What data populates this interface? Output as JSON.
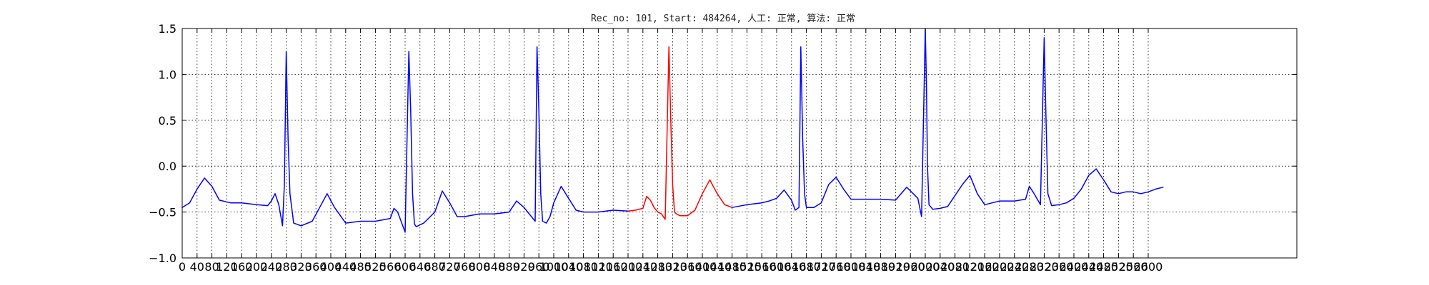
{
  "chart_data": {
    "type": "line",
    "title": "Rec_no: 101, Start: 484264, 人工: 正常, 算法: 正常",
    "xlabel": "",
    "ylabel": "",
    "xlim": [
      0,
      3000
    ],
    "ylim": [
      -1.0,
      1.5
    ],
    "grid": true,
    "y_ticks": [
      "−1.0",
      "−0.5",
      "0.0",
      "0.5",
      "1.0",
      "1.5"
    ],
    "x_ticks": [
      "0",
      "40",
      "80",
      "120",
      "160",
      "200",
      "240",
      "280",
      "320",
      "360",
      "400",
      "440",
      "480",
      "520",
      "560",
      "600",
      "640",
      "680",
      "720",
      "760",
      "800",
      "840",
      "880",
      "920",
      "960",
      "1000",
      "1040",
      "1080",
      "1120",
      "1160",
      "1200",
      "1240",
      "1280",
      "1320",
      "1360",
      "1400",
      "1440",
      "1480",
      "1520",
      "1560",
      "1600",
      "1640",
      "1680",
      "1720",
      "1760",
      "1800",
      "1840",
      "1880",
      "1920",
      "1960",
      "2000",
      "2040",
      "2080",
      "2120",
      "2160",
      "2200",
      "2240",
      "2280",
      "2320",
      "2360",
      "2400",
      "2440",
      "2480",
      "2520",
      "2560",
      "2600"
    ],
    "series": [
      {
        "color": "#0000ff",
        "x": [
          0,
          20,
          40,
          60,
          80,
          100,
          130,
          160,
          200,
          230,
          240,
          250,
          260,
          270,
          275,
          280,
          285,
          290,
          300,
          320,
          350,
          370,
          390,
          410,
          440,
          480,
          520,
          560,
          570,
          580,
          600,
          610,
          615,
          620,
          625,
          630,
          640,
          650,
          680,
          700,
          720,
          740,
          760,
          800,
          840,
          880,
          900,
          920,
          950,
          955,
          960,
          965,
          970,
          980,
          990,
          1000,
          1020,
          1040,
          1060,
          1080,
          1120,
          1160,
          1200
        ],
        "y": [
          -0.45,
          -0.4,
          -0.25,
          -0.13,
          -0.22,
          -0.37,
          -0.4,
          -0.4,
          -0.42,
          -0.43,
          -0.38,
          -0.3,
          -0.42,
          -0.65,
          -0.2,
          1.25,
          0.3,
          -0.3,
          -0.62,
          -0.65,
          -0.6,
          -0.45,
          -0.3,
          -0.45,
          -0.62,
          -0.6,
          -0.6,
          -0.57,
          -0.46,
          -0.5,
          -0.72,
          1.25,
          0.6,
          -0.3,
          -0.63,
          -0.66,
          -0.64,
          -0.62,
          -0.5,
          -0.27,
          -0.4,
          -0.55,
          -0.55,
          -0.52,
          -0.52,
          -0.5,
          -0.38,
          -0.45,
          -0.6,
          1.3,
          0.6,
          -0.3,
          -0.6,
          -0.62,
          -0.55,
          -0.4,
          -0.22,
          -0.35,
          -0.48,
          -0.5,
          -0.5,
          -0.48,
          -0.49
        ]
      },
      {
        "color": "#ff0000",
        "x": [
          1200,
          1220,
          1240,
          1250,
          1260,
          1270,
          1280,
          1290,
          1300,
          1310,
          1315,
          1320,
          1325,
          1330,
          1340,
          1360,
          1380,
          1400,
          1420,
          1440,
          1460,
          1480
        ],
        "y": [
          -0.49,
          -0.48,
          -0.46,
          -0.33,
          -0.37,
          -0.45,
          -0.5,
          -0.52,
          -0.58,
          1.3,
          0.5,
          -0.2,
          -0.5,
          -0.52,
          -0.54,
          -0.54,
          -0.48,
          -0.3,
          -0.15,
          -0.3,
          -0.42,
          -0.45
        ]
      },
      {
        "color": "#0000ff",
        "x": [
          1480,
          1520,
          1560,
          1580,
          1600,
          1620,
          1640,
          1650,
          1660,
          1665,
          1670,
          1675,
          1680,
          1700,
          1720,
          1740,
          1760,
          1780,
          1800,
          1840,
          1880,
          1920,
          1950,
          1980,
          1990,
          2000,
          2003,
          2006,
          2010,
          2020,
          2040,
          2060,
          2100,
          2120,
          2140,
          2160,
          2200,
          2240,
          2270,
          2280,
          2290,
          2300,
          2310,
          2320,
          2325,
          2330,
          2340,
          2360,
          2380,
          2400,
          2420,
          2440,
          2460,
          2480,
          2500,
          2520,
          2540,
          2560,
          2580,
          2600,
          2620,
          2640
        ],
        "y": [
          -0.45,
          -0.42,
          -0.4,
          -0.38,
          -0.35,
          -0.26,
          -0.37,
          -0.48,
          -0.45,
          1.3,
          0.3,
          -0.3,
          -0.45,
          -0.45,
          -0.4,
          -0.2,
          -0.12,
          -0.25,
          -0.36,
          -0.36,
          -0.36,
          -0.37,
          -0.23,
          -0.35,
          -0.55,
          1.5,
          0.9,
          0.0,
          -0.42,
          -0.47,
          -0.46,
          -0.44,
          -0.2,
          -0.1,
          -0.3,
          -0.42,
          -0.38,
          -0.38,
          -0.36,
          -0.22,
          -0.28,
          -0.35,
          -0.42,
          1.4,
          0.5,
          -0.3,
          -0.43,
          -0.42,
          -0.4,
          -0.35,
          -0.25,
          -0.1,
          -0.03,
          -0.15,
          -0.28,
          -0.3,
          -0.28,
          -0.28,
          -0.3,
          -0.28,
          -0.25,
          -0.23
        ]
      }
    ]
  }
}
